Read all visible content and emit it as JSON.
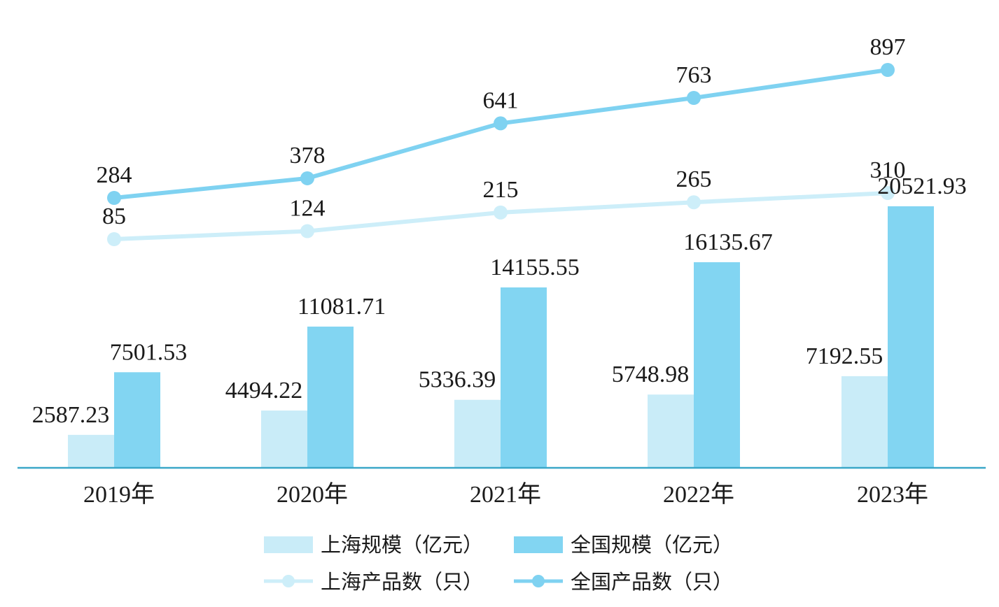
{
  "colors": {
    "sh_bar": "#c9ecf8",
    "cn_bar": "#82d5f2",
    "sh_line": "#cdeef9",
    "cn_line": "#7fd2f1",
    "axis": "#3aa7c8"
  },
  "chart_data": {
    "type": "bar",
    "categories": [
      "2019年",
      "2020年",
      "2021年",
      "2022年",
      "2023年"
    ],
    "bar_series": [
      {
        "name": "上海规模（亿元）",
        "values": [
          "2587.23",
          "4494.22",
          "5336.39",
          "5748.98",
          "7192.55"
        ]
      },
      {
        "name": "全国规模（亿元）",
        "values": [
          "7501.53",
          "11081.71",
          "14155.55",
          "16135.67",
          "20521.93"
        ]
      }
    ],
    "line_series": [
      {
        "name": "上海产品数（只）",
        "values": [
          "85",
          "124",
          "215",
          "265",
          "310"
        ]
      },
      {
        "name": "全国产品数（只）",
        "values": [
          "284",
          "378",
          "641",
          "763",
          "897"
        ]
      }
    ],
    "grid": false,
    "legend_position": "bottom-center"
  }
}
